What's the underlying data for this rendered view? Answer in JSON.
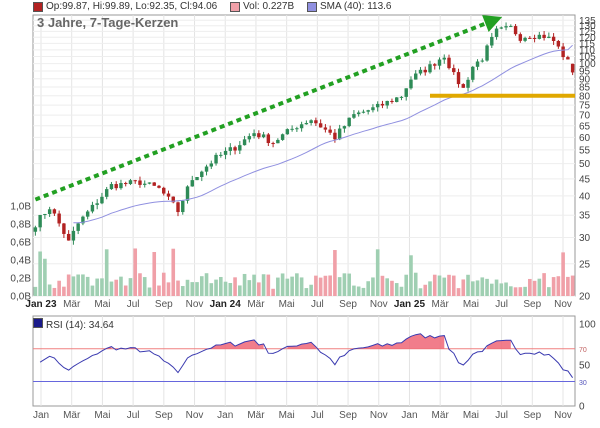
{
  "header": {
    "ohlc_label": "Op:99.87, Hi:99.89, Lo:92.35, Cl:94.06",
    "vol_label": "Vol: 0.227B",
    "sma_label": "SMA (40): 113.6",
    "title": "3 Jahre, 7-Tage-Kerzen",
    "rsi_label": "RSI (14): 34.64"
  },
  "colors": {
    "up": "#2e8b57",
    "down": "#b22222",
    "vol_up": "#9fcfb2",
    "vol_down": "#f0a0a8",
    "sma": "#9090e0",
    "trend_arrow": "#22a022",
    "support": "#e0a800",
    "rsi_line": "#3a3ab0",
    "rsi_fill": "#ee6677"
  },
  "chart_data": [
    {
      "type": "candlestick",
      "title": "3 Jahre, 7-Tage-Kerzen",
      "y_scale": "log",
      "ylim": [
        20,
        140
      ],
      "y_ticks": [
        20,
        25,
        30,
        35,
        40,
        45,
        50,
        55,
        60,
        65,
        70,
        75,
        80,
        85,
        90,
        95,
        100,
        105,
        110,
        115,
        120,
        125,
        130,
        135
      ],
      "volume_ticks": [
        "0,0B",
        "0,2B",
        "0,4B",
        "0,6B",
        "0,8B",
        "1,0B"
      ],
      "volume_max": 1.0,
      "x_ticks": [
        "Jan 23",
        "Mär",
        "Mai",
        "Jul",
        "Sep",
        "Nov",
        "Jan 24",
        "Mär",
        "Mai",
        "Jul",
        "Sep",
        "Nov",
        "Jan 25",
        "Mär",
        "Mai",
        "Jul",
        "Sep",
        "Nov"
      ],
      "x_bold": [
        "Jan 23",
        "Jan 24",
        "Jan 25"
      ],
      "close_waypoints": [
        [
          0,
          33
        ],
        [
          3,
          37
        ],
        [
          5,
          33
        ],
        [
          7,
          29
        ],
        [
          9,
          33
        ],
        [
          12,
          37
        ],
        [
          16,
          43
        ],
        [
          22,
          44
        ],
        [
          26,
          42
        ],
        [
          30,
          36
        ],
        [
          33,
          45
        ],
        [
          38,
          52
        ],
        [
          42,
          56
        ],
        [
          46,
          62
        ],
        [
          50,
          58
        ],
        [
          55,
          65
        ],
        [
          58,
          68
        ],
        [
          63,
          60
        ],
        [
          67,
          70
        ],
        [
          72,
          74
        ],
        [
          77,
          80
        ],
        [
          79,
          90
        ],
        [
          83,
          98
        ],
        [
          86,
          106
        ],
        [
          88,
          92
        ],
        [
          90,
          84
        ],
        [
          92,
          98
        ],
        [
          94,
          104
        ],
        [
          97,
          125
        ],
        [
          100,
          128
        ],
        [
          102,
          120
        ],
        [
          104,
          122
        ],
        [
          107,
          121
        ],
        [
          109,
          117
        ],
        [
          111,
          106
        ],
        [
          113,
          96
        ]
      ],
      "last_ohlc": {
        "open": 99.87,
        "high": 99.89,
        "low": 92.35,
        "close": 94.06
      },
      "last_volume": 0.227,
      "sma_period": 40,
      "sma_last": 113.6,
      "trend_arrow": {
        "from": [
          0,
          39
        ],
        "to": [
          97,
          136
        ]
      },
      "support_level": {
        "value": 80,
        "from": 83,
        "to": 115
      }
    },
    {
      "type": "line",
      "title": "RSI (14): 34.64",
      "ylim": [
        0,
        110
      ],
      "y_ticks": [
        0,
        30,
        50,
        70,
        100
      ],
      "overbought": 70,
      "oversold": 30,
      "last_value": 34.64
    }
  ]
}
